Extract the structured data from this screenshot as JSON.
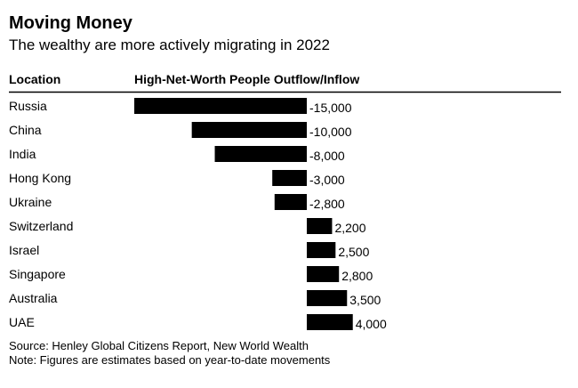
{
  "chart_data": {
    "type": "bar",
    "orientation": "horizontal",
    "title": "Moving Money",
    "subtitle": "The wealthy are more actively migrating in 2022",
    "category_header": "Location",
    "value_header": "High-Net-Worth People Outflow/Inflow",
    "categories": [
      "Russia",
      "China",
      "India",
      "Hong Kong",
      "Ukraine",
      "Switzerland",
      "Israel",
      "Singapore",
      "Australia",
      "UAE"
    ],
    "values": [
      -15000,
      -10000,
      -8000,
      -3000,
      -2800,
      2200,
      2500,
      2800,
      3500,
      4000
    ],
    "value_labels": [
      "-15,000",
      "-10,000",
      "-8,000",
      "-3,000",
      "-2,800",
      "2,200",
      "2,500",
      "2,800",
      "3,500",
      "4,000"
    ],
    "color": "#000000",
    "source": "Source: Henley Global Citizens Report, New World Wealth",
    "note": "Note: Figures are estimates based on year-to-date movements"
  }
}
